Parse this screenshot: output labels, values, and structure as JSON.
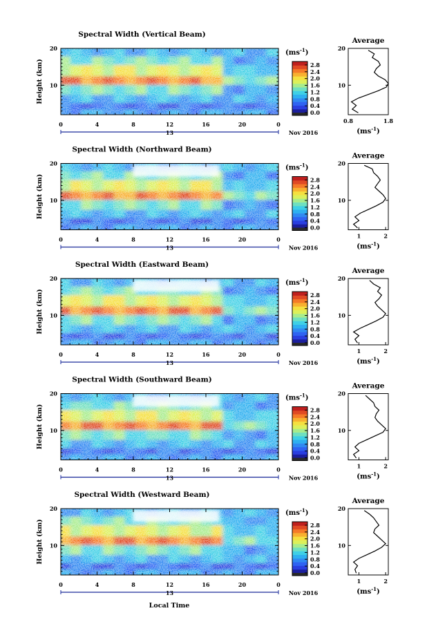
{
  "figure": {
    "xlabel": "Local Time",
    "date_label": "Nov 2016",
    "day_label": "13",
    "colorbar_unit": "(ms",
    "colorbar_unit_exp": "-1",
    "colorbar_unit_close": ")",
    "colorbar_ticks": [
      "0.0",
      "0.4",
      "0.8",
      "1.2",
      "1.6",
      "2.0",
      "2.4",
      "2.8"
    ],
    "profile_title": "Average",
    "colors": {
      "scale": [
        "#1c1f9e",
        "#2a3fe0",
        "#2f63f2",
        "#3089f2",
        "#2fb0f0",
        "#3fd0e6",
        "#6fe0c0",
        "#a8ec8c",
        "#dcf05a",
        "#f5e040",
        "#f8b030",
        "#f57a28",
        "#e04a24",
        "#c0201e"
      ]
    }
  },
  "chart_data": [
    {
      "type": "heatmap",
      "title": "Spectral Width (Vertical Beam)",
      "ylabel": "Height (km)",
      "xlabel": "",
      "x_ticks": [
        "0",
        "4",
        "8",
        "12",
        "16",
        "20",
        "0"
      ],
      "y_ticks": [
        "10",
        "20"
      ],
      "xlim": [
        0,
        24
      ],
      "ylim": [
        2,
        20
      ],
      "clim": [
        0.0,
        3.0
      ],
      "profile": {
        "title": "Average",
        "xlabel": "(ms",
        "x_ticks": [
          "0.8",
          "1.8"
        ],
        "xlim": [
          0.8,
          1.8
        ],
        "y_ticks": [
          "10",
          "20"
        ],
        "height": [
          2.5,
          3.5,
          4.5,
          5.5,
          6.5,
          7.5,
          8.5,
          9.5,
          10.5,
          11.5,
          12.5,
          13.5,
          14.5,
          15.5,
          16.5,
          17.5,
          18.5,
          19.5
        ],
        "width": [
          1.05,
          0.9,
          1.0,
          0.88,
          1.05,
          1.3,
          1.55,
          1.75,
          1.8,
          1.72,
          1.55,
          1.45,
          1.5,
          1.6,
          1.55,
          1.4,
          1.45,
          1.3
        ]
      }
    },
    {
      "type": "heatmap",
      "title": "Spectral Width (Northward Beam)",
      "ylabel": "Height (km)",
      "xlabel": "",
      "x_ticks": [
        "0",
        "4",
        "8",
        "12",
        "16",
        "20",
        "0"
      ],
      "y_ticks": [
        "10",
        "20"
      ],
      "xlim": [
        0,
        24
      ],
      "ylim": [
        2,
        20
      ],
      "clim": [
        0.0,
        3.0
      ],
      "profile": {
        "title": "Average",
        "xlabel": "(ms",
        "x_ticks": [
          "1",
          "2"
        ],
        "xlim": [
          0.6,
          2.1
        ],
        "y_ticks": [
          "10",
          "20"
        ],
        "height": [
          2.5,
          3.5,
          4.5,
          5.5,
          6.5,
          7.5,
          8.5,
          9.5,
          10.5,
          11.5,
          12.5,
          13.5,
          14.5,
          15.5,
          16.5,
          17.5,
          18.5,
          19.5
        ],
        "width": [
          0.95,
          0.8,
          1.0,
          0.85,
          1.05,
          1.35,
          1.65,
          1.9,
          2.0,
          1.9,
          1.75,
          1.6,
          1.7,
          1.8,
          1.7,
          1.55,
          1.5,
          1.2
        ]
      }
    },
    {
      "type": "heatmap",
      "title": "Spectral Width (Eastward Beam)",
      "ylabel": "Height (km)",
      "xlabel": "",
      "x_ticks": [
        "0",
        "4",
        "8",
        "12",
        "16",
        "20",
        "0"
      ],
      "y_ticks": [
        "10",
        "20"
      ],
      "xlim": [
        0,
        24
      ],
      "ylim": [
        2,
        20
      ],
      "clim": [
        0.0,
        3.0
      ],
      "profile": {
        "title": "Average",
        "xlabel": "(ms",
        "x_ticks": [
          "1",
          "2"
        ],
        "xlim": [
          0.6,
          2.1
        ],
        "y_ticks": [
          "10",
          "20"
        ],
        "height": [
          2.5,
          3.5,
          4.5,
          5.5,
          6.5,
          7.5,
          8.5,
          9.5,
          10.5,
          11.5,
          12.5,
          13.5,
          14.5,
          15.5,
          16.5,
          17.5,
          18.5,
          19.5
        ],
        "width": [
          0.95,
          0.85,
          1.0,
          0.8,
          1.05,
          1.35,
          1.65,
          1.9,
          2.0,
          1.85,
          1.7,
          1.6,
          1.75,
          1.85,
          1.7,
          1.8,
          1.55,
          1.4
        ]
      }
    },
    {
      "type": "heatmap",
      "title": "Spectral Width (Southward Beam)",
      "ylabel": "Height (km)",
      "xlabel": "",
      "x_ticks": [
        "0",
        "4",
        "8",
        "12",
        "16",
        "20",
        "0"
      ],
      "y_ticks": [
        "10",
        "20"
      ],
      "xlim": [
        0,
        24
      ],
      "ylim": [
        2,
        20
      ],
      "clim": [
        0.0,
        3.0
      ],
      "profile": {
        "title": "Average",
        "xlabel": "(ms",
        "x_ticks": [
          "1",
          "2"
        ],
        "xlim": [
          0.6,
          2.1
        ],
        "y_ticks": [
          "10",
          "20"
        ],
        "height": [
          2.5,
          3.5,
          4.5,
          5.5,
          6.5,
          7.5,
          8.5,
          9.5,
          10.5,
          11.5,
          12.5,
          13.5,
          14.5,
          15.5,
          16.5,
          17.5,
          18.5,
          19.5
        ],
        "width": [
          0.9,
          0.8,
          1.0,
          0.85,
          1.0,
          1.3,
          1.6,
          1.9,
          2.0,
          1.85,
          1.7,
          1.6,
          1.65,
          1.75,
          1.6,
          1.55,
          1.4,
          1.25
        ]
      }
    },
    {
      "type": "heatmap",
      "title": "Spectral Width (Westward Beam)",
      "ylabel": "Height (km)",
      "xlabel": "Local Time",
      "x_ticks": [
        "0",
        "4",
        "8",
        "12",
        "16",
        "20",
        "0"
      ],
      "y_ticks": [
        "10",
        "20"
      ],
      "xlim": [
        0,
        24
      ],
      "ylim": [
        2,
        20
      ],
      "clim": [
        0.0,
        3.0
      ],
      "profile": {
        "title": "Average",
        "xlabel": "(ms",
        "x_ticks": [
          "1",
          "2"
        ],
        "xlim": [
          0.6,
          2.1
        ],
        "y_ticks": [
          "10",
          "20"
        ],
        "height": [
          2.5,
          3.5,
          4.5,
          5.5,
          6.5,
          7.5,
          8.5,
          9.5,
          10.5,
          11.5,
          12.5,
          13.5,
          14.5,
          15.5,
          16.5,
          17.5,
          18.5,
          19.5
        ],
        "width": [
          0.9,
          0.85,
          0.95,
          0.8,
          1.0,
          1.3,
          1.6,
          1.85,
          2.0,
          1.85,
          1.7,
          1.55,
          1.6,
          1.75,
          1.65,
          1.55,
          1.4,
          1.2
        ]
      }
    }
  ]
}
